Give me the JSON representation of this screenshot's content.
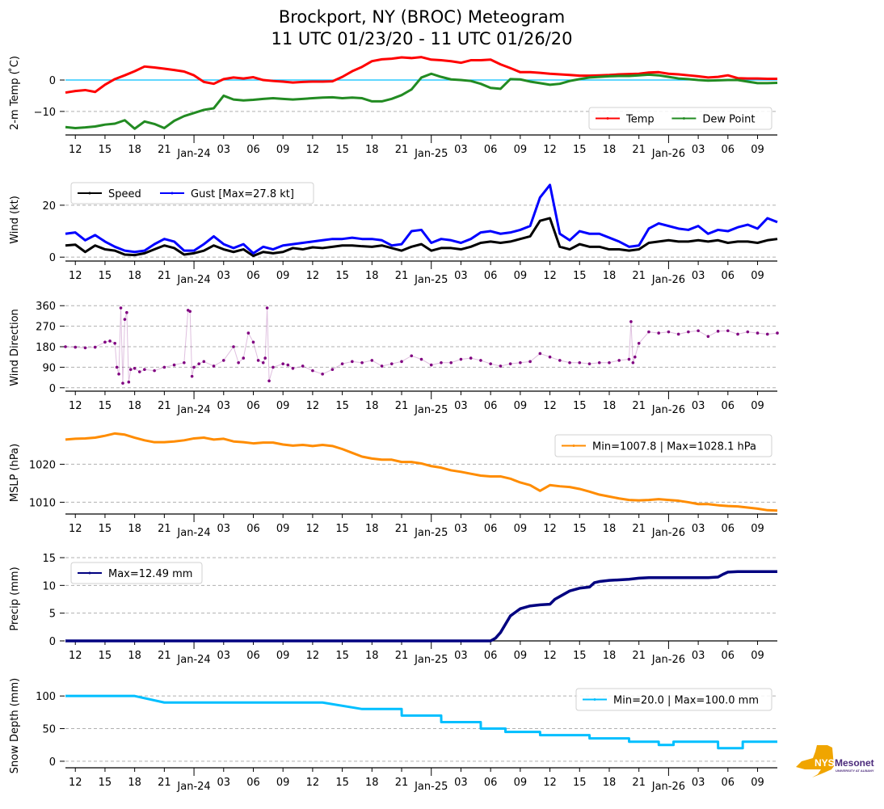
{
  "title_line1": "Brockport, NY (BROC) Meteogram",
  "title_line2": "11 UTC 01/23/20 - 11 UTC 01/26/20",
  "logo": {
    "name": "NYS Mesonet",
    "nys": "NYS",
    "mesonet": "Mesonet",
    "sub": "UNIVERSITY AT ALBANY",
    "state_color": "#f0a500",
    "text_color": "#4b2a7b"
  },
  "chart_data": [
    {
      "type": "line",
      "panel": "temperature",
      "ylabel": "2-m Temp ($^\\circ$C)",
      "ylabel_display": "2-m Temp ( ̊C)",
      "ylim": [
        -17.5,
        8.5
      ],
      "yticks": [
        0,
        -10
      ],
      "ytick_labels": [
        "0",
        "−10"
      ],
      "grid": "y dashed",
      "reference_line": {
        "y": 0,
        "color": "#00bfff"
      },
      "legend": {
        "placement": "lower-right",
        "ncol": 2
      },
      "xlabel": "",
      "x_unit": "hours since 11 UTC 01/23/20",
      "xlim": [
        0,
        72
      ],
      "xticks_hours": [
        1,
        4,
        7,
        10,
        13,
        16,
        19,
        22,
        25,
        28,
        31,
        34,
        37,
        40,
        43,
        46,
        49,
        52,
        55,
        58,
        61,
        64,
        67,
        70
      ],
      "xtick_labels": [
        "12",
        "15",
        "18",
        "21",
        "Jan-24",
        "03",
        "06",
        "09",
        "12",
        "15",
        "18",
        "21",
        "Jan-25",
        "03",
        "06",
        "09",
        "12",
        "15",
        "18",
        "21",
        "Jan-26",
        "03",
        "06",
        "09"
      ],
      "x": [
        0,
        1,
        2,
        3,
        4,
        5,
        6,
        7,
        8,
        9,
        10,
        11,
        12,
        13,
        14,
        15,
        16,
        17,
        18,
        19,
        20,
        21,
        22,
        23,
        24,
        25,
        26,
        27,
        28,
        29,
        30,
        31,
        32,
        33,
        34,
        35,
        36,
        37,
        38,
        39,
        40,
        41,
        42,
        43,
        44,
        45,
        46,
        47,
        48,
        49,
        50,
        51,
        52,
        53,
        54,
        55,
        56,
        57,
        58,
        59,
        60,
        61,
        62,
        63,
        64,
        65,
        66,
        67,
        68,
        69,
        70,
        71,
        72
      ],
      "series": [
        {
          "name": "Temp",
          "color": "#ff0000",
          "values": [
            -4.0,
            -3.5,
            -3.2,
            -3.8,
            -1.5,
            0.3,
            1.5,
            2.8,
            4.3,
            4.0,
            3.6,
            3.2,
            2.7,
            1.5,
            -0.6,
            -1.2,
            0.3,
            0.8,
            0.5,
            0.9,
            0.0,
            -0.3,
            -0.5,
            -0.8,
            -0.6,
            -0.5,
            -0.5,
            -0.4,
            1.0,
            2.8,
            4.2,
            6.0,
            6.6,
            6.8,
            7.2,
            7.0,
            7.3,
            6.5,
            6.3,
            6.0,
            5.5,
            6.3,
            6.3,
            6.5,
            5.0,
            3.8,
            2.5,
            2.5,
            2.3,
            2.0,
            1.8,
            1.6,
            1.4,
            1.4,
            1.5,
            1.6,
            1.8,
            1.9,
            2.0,
            2.4,
            2.5,
            2.0,
            1.8,
            1.5,
            1.2,
            0.8,
            1.0,
            1.5,
            0.6,
            0.5,
            0.5,
            0.4,
            0.4
          ]
        },
        {
          "name": "Dew Point",
          "color": "#228b22",
          "values": [
            -15.0,
            -15.3,
            -15.1,
            -14.8,
            -14.2,
            -13.9,
            -12.8,
            -15.5,
            -13.2,
            -14.0,
            -15.3,
            -13.0,
            -11.5,
            -10.5,
            -9.5,
            -9.0,
            -5.0,
            -6.2,
            -6.5,
            -6.3,
            -6.0,
            -5.8,
            -6.0,
            -6.2,
            -6.0,
            -5.8,
            -5.6,
            -5.5,
            -5.8,
            -5.6,
            -5.8,
            -6.8,
            -6.8,
            -6.0,
            -4.8,
            -3.0,
            0.8,
            2.0,
            1.0,
            0.2,
            0.0,
            -0.3,
            -1.2,
            -2.5,
            -2.8,
            0.3,
            0.2,
            -0.5,
            -1.0,
            -1.5,
            -1.2,
            -0.3,
            0.3,
            0.8,
            1.0,
            1.2,
            1.3,
            1.3,
            1.5,
            1.7,
            1.5,
            1.0,
            0.5,
            0.3,
            0.0,
            -0.2,
            -0.1,
            0.0,
            0.0,
            -0.5,
            -1.0,
            -1.0,
            -0.9
          ]
        }
      ]
    },
    {
      "type": "line",
      "panel": "wind",
      "ylabel": "Wind (kt)",
      "ylim": [
        -1.5,
        29
      ],
      "yticks": [
        0,
        20
      ],
      "ytick_labels": [
        "0",
        "20"
      ],
      "grid": "y dashed",
      "legend": {
        "placement": "upper-left",
        "ncol": 2
      },
      "x": [
        0,
        1,
        2,
        3,
        4,
        5,
        6,
        7,
        8,
        9,
        10,
        11,
        12,
        13,
        14,
        15,
        16,
        17,
        18,
        19,
        20,
        21,
        22,
        23,
        24,
        25,
        26,
        27,
        28,
        29,
        30,
        31,
        32,
        33,
        34,
        35,
        36,
        37,
        38,
        39,
        40,
        41,
        42,
        43,
        44,
        45,
        46,
        47,
        48,
        49,
        50,
        51,
        52,
        53,
        54,
        55,
        56,
        57,
        58,
        59,
        60,
        61,
        62,
        63,
        64,
        65,
        66,
        67,
        68,
        69,
        70,
        71,
        72
      ],
      "series": [
        {
          "name": "Speed",
          "color": "#000000",
          "values": [
            4.5,
            4.8,
            2.0,
            4.5,
            3.0,
            2.5,
            1.0,
            0.8,
            1.5,
            3.0,
            4.5,
            3.5,
            1.0,
            1.5,
            2.5,
            4.5,
            3.0,
            2.0,
            3.0,
            0.5,
            2.0,
            1.5,
            2.0,
            3.5,
            3.0,
            3.8,
            3.5,
            4.0,
            4.5,
            4.5,
            4.2,
            4.0,
            4.5,
            3.5,
            2.5,
            4.0,
            5.0,
            2.5,
            3.5,
            3.5,
            3.0,
            4.0,
            5.5,
            6.0,
            5.5,
            6.0,
            7.0,
            8.0,
            14.0,
            15.0,
            4.0,
            3.0,
            5.0,
            4.0,
            4.0,
            3.0,
            3.0,
            2.5,
            3.0,
            5.5,
            6.0,
            6.5,
            6.0,
            6.0,
            6.5,
            6.0,
            6.5,
            5.5,
            6.0,
            6.0,
            5.5,
            6.5,
            7.0
          ]
        },
        {
          "name": "Gust [Max=27.8 kt]",
          "color": "#0000ff",
          "values": [
            9.0,
            9.5,
            6.5,
            8.5,
            6.0,
            4.0,
            2.5,
            2.0,
            2.5,
            5.0,
            7.0,
            6.0,
            2.5,
            2.5,
            5.0,
            8.0,
            5.0,
            3.5,
            5.0,
            1.5,
            4.0,
            3.0,
            4.5,
            5.0,
            5.5,
            6.0,
            6.5,
            7.0,
            7.0,
            7.5,
            7.0,
            7.0,
            6.5,
            4.5,
            5.0,
            10.0,
            10.5,
            5.5,
            7.0,
            6.5,
            5.5,
            7.0,
            9.5,
            10.0,
            9.0,
            9.5,
            10.5,
            12.0,
            23.0,
            27.8,
            9.0,
            6.5,
            10.0,
            9.0,
            9.0,
            7.5,
            6.0,
            4.0,
            4.5,
            11.0,
            13.0,
            12.0,
            11.0,
            10.5,
            12.0,
            9.0,
            10.5,
            10.0,
            11.5,
            12.5,
            11.0,
            15.0,
            13.5
          ]
        }
      ]
    },
    {
      "type": "scatter",
      "panel": "wind_direction",
      "ylabel": "Wind Direction",
      "ylim": [
        -15,
        375
      ],
      "yticks": [
        0,
        90,
        180,
        270,
        360
      ],
      "ytick_labels": [
        "0",
        "90",
        "180",
        "270",
        "360"
      ],
      "grid": "y dashed",
      "legend": null,
      "x": [
        0,
        1,
        2,
        3,
        4,
        4.5,
        5,
        5.2,
        5.4,
        5.6,
        5.8,
        6.0,
        6.2,
        6.4,
        6.6,
        7,
        7.5,
        8,
        9,
        10,
        11,
        12,
        12.4,
        12.6,
        12.8,
        13,
        13.5,
        14,
        15,
        16,
        17,
        17.5,
        18,
        18.5,
        19,
        19.5,
        20,
        20.2,
        20.4,
        20.6,
        21,
        22,
        22.5,
        23,
        24,
        25,
        26,
        27,
        28,
        29,
        30,
        31,
        32,
        33,
        34,
        35,
        36,
        37,
        38,
        39,
        40,
        41,
        42,
        43,
        44,
        45,
        46,
        47,
        48,
        49,
        50,
        51,
        52,
        53,
        54,
        55,
        56,
        57,
        57.2,
        57.4,
        57.6,
        58,
        59,
        60,
        61,
        62,
        63,
        64,
        65,
        66,
        67,
        68,
        69,
        70,
        71,
        72
      ],
      "series": [
        {
          "name": "Wind Direction",
          "color": "#800080",
          "values": [
            180,
            178,
            175,
            178,
            200,
            205,
            195,
            90,
            60,
            350,
            20,
            300,
            330,
            25,
            80,
            85,
            70,
            80,
            75,
            90,
            100,
            110,
            340,
            335,
            50,
            90,
            105,
            115,
            95,
            120,
            180,
            110,
            130,
            240,
            200,
            120,
            110,
            130,
            350,
            30,
            90,
            105,
            100,
            85,
            95,
            75,
            60,
            80,
            105,
            115,
            110,
            120,
            95,
            105,
            115,
            140,
            125,
            100,
            110,
            110,
            125,
            130,
            120,
            105,
            95,
            105,
            110,
            115,
            150,
            135,
            120,
            110,
            110,
            105,
            110,
            110,
            120,
            125,
            290,
            110,
            135,
            195,
            245,
            240,
            245,
            235,
            245,
            250,
            225,
            248,
            250,
            235,
            245,
            240,
            235,
            240
          ]
        }
      ]
    },
    {
      "type": "line",
      "panel": "mslp",
      "ylabel": "MSLP (hPa)",
      "ylim": [
        1006.9,
        1028.6
      ],
      "yticks": [
        1010,
        1020
      ],
      "ytick_labels": [
        "1010",
        "1020"
      ],
      "grid": "y dashed",
      "legend": {
        "placement": "upper-right",
        "ncol": 1
      },
      "x": [
        0,
        1,
        2,
        3,
        4,
        5,
        6,
        7,
        8,
        9,
        10,
        11,
        12,
        13,
        14,
        15,
        16,
        17,
        18,
        19,
        20,
        21,
        22,
        23,
        24,
        25,
        26,
        27,
        28,
        29,
        30,
        31,
        32,
        33,
        34,
        35,
        36,
        37,
        38,
        39,
        40,
        41,
        42,
        43,
        44,
        45,
        46,
        47,
        48,
        49,
        50,
        51,
        52,
        53,
        54,
        55,
        56,
        57,
        58,
        59,
        60,
        61,
        62,
        63,
        64,
        65,
        66,
        67,
        68,
        69,
        70,
        71,
        72
      ],
      "series": [
        {
          "name": "Min=1007.8 | Max=1028.1 hPa",
          "color": "#ff8c00",
          "values": [
            1026.5,
            1026.7,
            1026.8,
            1027.0,
            1027.5,
            1028.1,
            1027.8,
            1027.0,
            1026.3,
            1025.8,
            1025.8,
            1026.0,
            1026.3,
            1026.8,
            1027.0,
            1026.5,
            1026.7,
            1026.0,
            1025.8,
            1025.5,
            1025.7,
            1025.7,
            1025.2,
            1024.9,
            1025.1,
            1024.8,
            1025.1,
            1024.8,
            1024.0,
            1023.0,
            1022.0,
            1021.5,
            1021.2,
            1021.2,
            1020.6,
            1020.6,
            1020.2,
            1019.5,
            1019.1,
            1018.4,
            1018.0,
            1017.5,
            1017.0,
            1016.8,
            1016.8,
            1016.2,
            1015.2,
            1014.5,
            1013.0,
            1014.5,
            1014.2,
            1014.0,
            1013.5,
            1012.8,
            1012.0,
            1011.5,
            1011.0,
            1010.6,
            1010.5,
            1010.6,
            1010.8,
            1010.6,
            1010.4,
            1010.0,
            1009.5,
            1009.5,
            1009.2,
            1009.0,
            1008.9,
            1008.6,
            1008.3,
            1007.9,
            1007.8
          ]
        }
      ]
    },
    {
      "type": "line",
      "panel": "precip",
      "ylabel": "Precip (mm)",
      "ylim": [
        0,
        15
      ],
      "yticks": [
        0,
        5,
        10,
        15
      ],
      "ytick_labels": [
        "0",
        "5",
        "10",
        "15"
      ],
      "grid": "y dashed",
      "legend": {
        "placement": "upper-left",
        "ncol": 1
      },
      "x": [
        0,
        10,
        20,
        30,
        40,
        43,
        43.5,
        44,
        45,
        46,
        47,
        48,
        49,
        49.5,
        50,
        51,
        52,
        53,
        53.5,
        54,
        55,
        56,
        57,
        58,
        59,
        60,
        61,
        62,
        63,
        64,
        65,
        66,
        66.5,
        67,
        68,
        69,
        70,
        71,
        72
      ],
      "series": [
        {
          "name": "Max=12.49 mm",
          "color": "#000080",
          "values": [
            0,
            0,
            0,
            0,
            0,
            0,
            0.5,
            1.5,
            4.5,
            5.8,
            6.3,
            6.5,
            6.6,
            7.5,
            8.0,
            9.0,
            9.5,
            9.7,
            10.5,
            10.7,
            10.9,
            11.0,
            11.1,
            11.3,
            11.4,
            11.4,
            11.4,
            11.4,
            11.4,
            11.4,
            11.4,
            11.5,
            12.0,
            12.4,
            12.49,
            12.49,
            12.49,
            12.49,
            12.49
          ]
        }
      ]
    },
    {
      "type": "line",
      "panel": "snow_depth",
      "ylabel": "Snow Depth (mm)",
      "ylim": [
        -10,
        120
      ],
      "yticks": [
        0,
        50,
        100
      ],
      "ytick_labels": [
        "0",
        "50",
        "100"
      ],
      "grid": "y dashed",
      "legend": {
        "placement": "upper-right",
        "ncol": 1
      },
      "x": [
        0,
        7,
        10,
        20,
        26,
        30,
        34,
        34.01,
        38,
        38.01,
        42,
        42.01,
        44.5,
        44.5,
        48,
        48.01,
        53,
        53.01,
        57,
        57.01,
        60,
        60.01,
        61.5,
        61.5,
        66,
        66.01,
        68.5,
        68.5,
        72
      ],
      "series": [
        {
          "name": "Min=20.0 | Max=100.0 mm",
          "color": "#00bfff",
          "values": [
            100,
            100,
            90,
            90,
            90,
            80,
            80,
            70,
            70,
            60,
            60,
            50,
            50,
            45,
            45,
            40,
            40,
            35,
            35,
            30,
            30,
            25,
            25,
            30,
            30,
            20,
            20,
            30,
            30
          ]
        }
      ]
    }
  ]
}
